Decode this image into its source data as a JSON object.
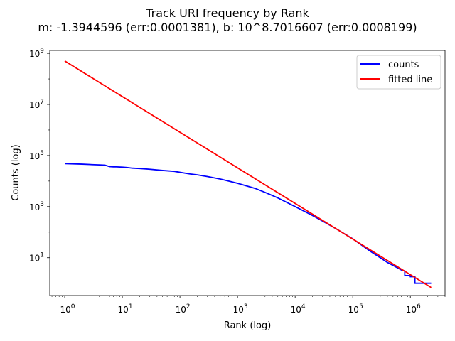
{
  "chart_data": {
    "type": "line",
    "title": "Track URI frequency by Rank",
    "subtitle": "m: -1.3944596 (err:0.0001381), b: 10^8.7016607 (err:0.0008199)",
    "xlabel": "Rank (log)",
    "ylabel": "Counts (log)",
    "xscale": "log",
    "yscale": "log",
    "xlim": [
      0.55,
      4000000
    ],
    "ylim": [
      0.33,
      1300000000
    ],
    "grid": false,
    "legend_position": "top-right",
    "x_ticks": [
      {
        "base": "10",
        "exp": "0",
        "value": 1
      },
      {
        "base": "10",
        "exp": "1",
        "value": 10
      },
      {
        "base": "10",
        "exp": "2",
        "value": 100
      },
      {
        "base": "10",
        "exp": "3",
        "value": 1000
      },
      {
        "base": "10",
        "exp": "4",
        "value": 10000
      },
      {
        "base": "10",
        "exp": "5",
        "value": 100000
      },
      {
        "base": "10",
        "exp": "6",
        "value": 1000000
      }
    ],
    "y_ticks": [
      {
        "base": "10",
        "exp": "1",
        "value": 10
      },
      {
        "base": "10",
        "exp": "3",
        "value": 1000
      },
      {
        "base": "10",
        "exp": "5",
        "value": 100000
      },
      {
        "base": "10",
        "exp": "7",
        "value": 10000000
      },
      {
        "base": "10",
        "exp": "9",
        "value": 1000000000
      }
    ],
    "series": [
      {
        "name": "counts",
        "color": "#0000ff",
        "x": [
          1,
          2,
          3,
          4,
          5,
          6,
          7,
          8,
          10,
          12,
          15,
          20,
          30,
          50,
          80,
          100,
          150,
          200,
          300,
          500,
          700,
          1000,
          2000,
          3000,
          5000,
          10000,
          20000,
          30000,
          50000,
          100000,
          200000,
          300000,
          400000,
          500000,
          600000,
          700000,
          800000,
          800000,
          1000000,
          1000000,
          1200000,
          1200000,
          1500000,
          2000000,
          2300000
        ],
        "y": [
          48000,
          46000,
          44000,
          43000,
          42000,
          37000,
          36000,
          36000,
          35000,
          34000,
          32000,
          31000,
          29000,
          26000,
          24000,
          22000,
          19000,
          17500,
          15000,
          12000,
          10000,
          8200,
          5200,
          3600,
          2200,
          1000,
          450,
          270,
          140,
          55,
          18,
          10,
          6.5,
          5,
          4,
          3.3,
          3,
          2,
          2,
          1.8,
          1.8,
          1,
          1,
          1,
          1
        ]
      },
      {
        "name": "fitted line",
        "color": "#ff0000",
        "slope": -1.3944596,
        "intercept_log10": 8.7016607,
        "x": [
          1,
          2300000
        ]
      }
    ]
  }
}
